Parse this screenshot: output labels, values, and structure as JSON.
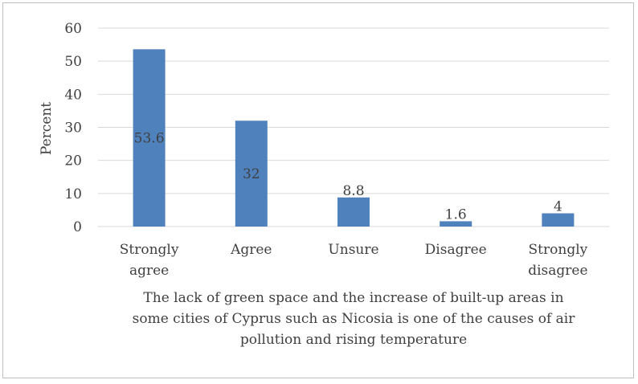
{
  "chart_data": {
    "type": "bar",
    "categories": [
      [
        "Strongly",
        "agree"
      ],
      [
        "Agree"
      ],
      [
        "Unsure"
      ],
      [
        "Disagree"
      ],
      [
        "Strongly",
        "disagree"
      ]
    ],
    "values": [
      53.6,
      32,
      8.8,
      1.6,
      4
    ],
    "data_labels": [
      "53.6",
      "32",
      "8.8",
      "1.6",
      "4"
    ],
    "ylabel": "Percent",
    "xlabel": [
      "The lack of green space and the increase of built-up areas in",
      "some cities of Cyprus such as Nicosia is one of the causes of air",
      "pollution and rising temperature"
    ],
    "ylim": [
      0,
      60
    ],
    "yticks": [
      0,
      10,
      20,
      30,
      40,
      50,
      60
    ],
    "grid": true,
    "bar_color": "#4f81bd",
    "grid_color": "#d9d9d9"
  }
}
